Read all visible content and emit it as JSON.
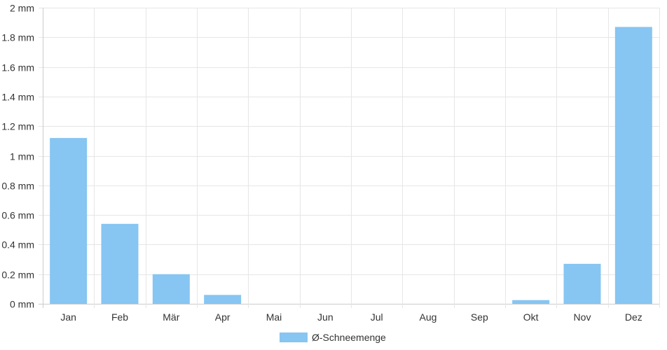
{
  "chart_data": {
    "type": "bar",
    "categories": [
      "Jan",
      "Feb",
      "Mär",
      "Apr",
      "Mai",
      "Jun",
      "Jul",
      "Aug",
      "Sep",
      "Okt",
      "Nov",
      "Dez"
    ],
    "series": [
      {
        "name": "Ø-Schneemenge",
        "values": [
          1.12,
          0.54,
          0.2,
          0.06,
          0,
          0,
          0,
          0,
          0,
          0.025,
          0.27,
          1.87
        ],
        "color": "#87c5f2"
      }
    ],
    "y_ticks": [
      "0 mm",
      "0.2 mm",
      "0.4 mm",
      "0.6 mm",
      "0.8 mm",
      "1 mm",
      "1.2 mm",
      "1.4 mm",
      "1.6 mm",
      "1.8 mm",
      "2 mm"
    ],
    "ylim": [
      0,
      2
    ],
    "y_unit": "mm",
    "grid": true,
    "legend_position": "bottom"
  }
}
